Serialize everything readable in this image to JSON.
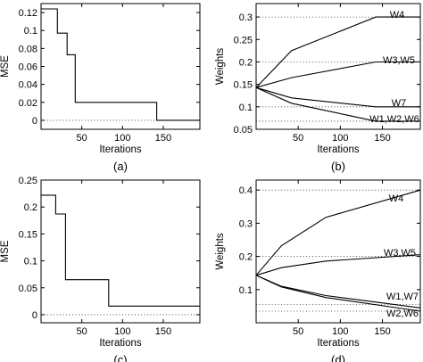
{
  "chart_data": [
    {
      "panel": "a",
      "type": "line",
      "panel_label": "(a)",
      "xlabel": "Iterations",
      "ylabel": "MSE",
      "xlim": [
        0,
        195
      ],
      "ylim": [
        -0.01,
        0.13
      ],
      "xticks": [
        50,
        100,
        150
      ],
      "yticks": [
        0,
        0.02,
        0.04,
        0.06,
        0.08,
        0.1,
        0.12
      ],
      "ytick_labels": [
        "0",
        "0.02",
        "0.04",
        "0.06",
        "0.08",
        "0.1",
        "0.12"
      ],
      "hlines": [
        0
      ],
      "grid": false,
      "series": [
        {
          "step": true,
          "x": [
            0,
            20,
            20,
            32,
            32,
            36,
            36,
            42,
            42,
            142,
            142,
            195
          ],
          "y": [
            0.124,
            0.124,
            0.097,
            0.097,
            0.073,
            0.073,
            0.073,
            0.073,
            0.02,
            0.02,
            0.0,
            0.0
          ]
        }
      ]
    },
    {
      "panel": "b",
      "type": "line",
      "panel_label": "(b)",
      "xlabel": "Iterations",
      "ylabel": "Weights",
      "xlim": [
        0,
        195
      ],
      "ylim": [
        0.05,
        0.33
      ],
      "xticks": [
        50,
        100,
        150
      ],
      "yticks": [
        0.05,
        0.1,
        0.15,
        0.2,
        0.25,
        0.3
      ],
      "ytick_labels": [
        "0.05",
        "0.1",
        "0.15",
        "0.2",
        "0.25",
        "0.3"
      ],
      "hlines": [
        0.3,
        0.2,
        0.1,
        0.068
      ],
      "grid": false,
      "series": [
        {
          "name": "W4",
          "label": "W4",
          "x": [
            0,
            42,
            142,
            195
          ],
          "y": [
            0.143,
            0.225,
            0.3,
            0.3
          ]
        },
        {
          "name": "W3,W5",
          "label": "W3,W5",
          "x": [
            0,
            42,
            142,
            195
          ],
          "y": [
            0.143,
            0.165,
            0.2,
            0.2
          ]
        },
        {
          "name": "W7",
          "label": "W7",
          "x": [
            0,
            42,
            142,
            195
          ],
          "y": [
            0.143,
            0.12,
            0.1,
            0.1
          ]
        },
        {
          "name": "W1,W2,W6",
          "label": "W1,W2,W6",
          "x": [
            0,
            42,
            142,
            195
          ],
          "y": [
            0.143,
            0.108,
            0.068,
            0.068
          ]
        }
      ]
    },
    {
      "panel": "c",
      "type": "line",
      "panel_label": "(c)",
      "xlabel": "Iterations",
      "ylabel": "MSE",
      "xlim": [
        0,
        195
      ],
      "ylim": [
        -0.015,
        0.25
      ],
      "xticks": [
        50,
        100,
        150
      ],
      "yticks": [
        0,
        0.05,
        0.1,
        0.15,
        0.2,
        0.25
      ],
      "ytick_labels": [
        "0",
        "0.05",
        "0.1",
        "0.15",
        "0.2",
        "0.25"
      ],
      "hlines": [
        0
      ],
      "grid": false,
      "series": [
        {
          "step": true,
          "x": [
            0,
            18,
            18,
            30,
            30,
            83,
            83,
            195
          ],
          "y": [
            0.222,
            0.222,
            0.187,
            0.187,
            0.065,
            0.065,
            0.016,
            0.016
          ]
        }
      ]
    },
    {
      "panel": "d",
      "type": "line",
      "panel_label": "(d)",
      "xlabel": "Iterations",
      "ylabel": "Weights",
      "xlim": [
        0,
        195
      ],
      "ylim": [
        0.0,
        0.43
      ],
      "xticks": [
        50,
        100,
        150
      ],
      "yticks": [
        0.1,
        0.2,
        0.3,
        0.4
      ],
      "ytick_labels": [
        "0.1",
        "0.2",
        "0.3",
        "0.4"
      ],
      "hlines": [
        0.4,
        0.2,
        0.055,
        0.035
      ],
      "grid": false,
      "series": [
        {
          "name": "W4",
          "label": "W4",
          "x": [
            0,
            30,
            83,
            195
          ],
          "y": [
            0.143,
            0.232,
            0.318,
            0.4
          ]
        },
        {
          "name": "W3,W5",
          "label": "W3,W5",
          "x": [
            0,
            30,
            83,
            195
          ],
          "y": [
            0.143,
            0.166,
            0.186,
            0.205
          ]
        },
        {
          "name": "W1,W7",
          "label": "W1,W7",
          "x": [
            0,
            30,
            83,
            195
          ],
          "y": [
            0.143,
            0.11,
            0.082,
            0.045
          ]
        },
        {
          "name": "W2,W6",
          "label": "W2,W6",
          "x": [
            0,
            30,
            83,
            195
          ],
          "y": [
            0.143,
            0.108,
            0.076,
            0.035
          ]
        }
      ]
    }
  ]
}
